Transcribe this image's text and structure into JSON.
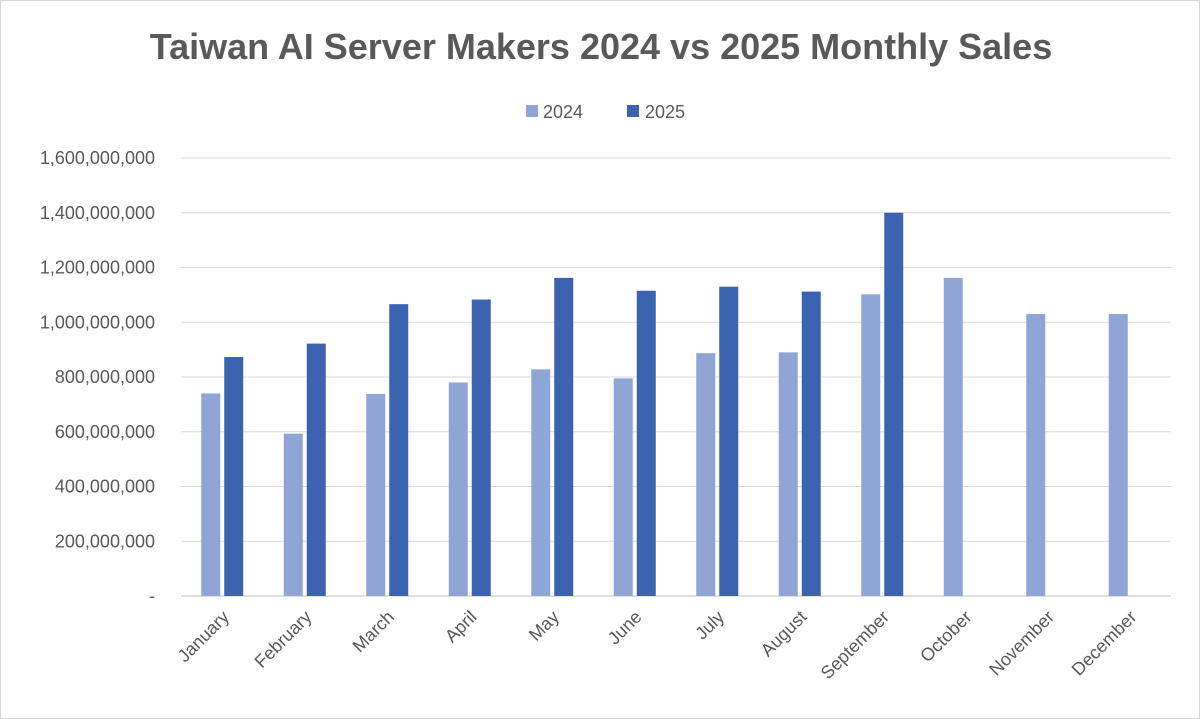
{
  "chart_data": {
    "type": "bar",
    "title": "Taiwan AI Server Makers 2024 vs 2025 Monthly Sales",
    "xlabel": "",
    "ylabel": "",
    "categories": [
      "January",
      "February",
      "March",
      "April",
      "May",
      "June",
      "July",
      "August",
      "September",
      "October",
      "November",
      "December"
    ],
    "series": [
      {
        "name": "2024",
        "color": "#8fa5d6",
        "values": [
          740000000,
          593000000,
          738000000,
          780000000,
          828000000,
          795000000,
          887000000,
          890000000,
          1102000000,
          1162000000,
          1030000000,
          1030000000
        ]
      },
      {
        "name": "2025",
        "color": "#3b63b0",
        "values": [
          873000000,
          922000000,
          1066000000,
          1083000000,
          1162000000,
          1115000000,
          1130000000,
          1112000000,
          1400000000,
          null,
          null,
          null
        ]
      }
    ],
    "ylim": [
      0,
      1600000000
    ],
    "yticks": [
      0,
      200000000,
      400000000,
      600000000,
      800000000,
      1000000000,
      1200000000,
      1400000000,
      1600000000
    ],
    "ytick_labels": [
      "-",
      "200,000,000",
      "400,000,000",
      "600,000,000",
      "800,000,000",
      "1,000,000,000",
      "1,200,000,000",
      "1,400,000,000",
      "1,600,000,000"
    ],
    "grid": true,
    "legend_position": "top-center"
  }
}
